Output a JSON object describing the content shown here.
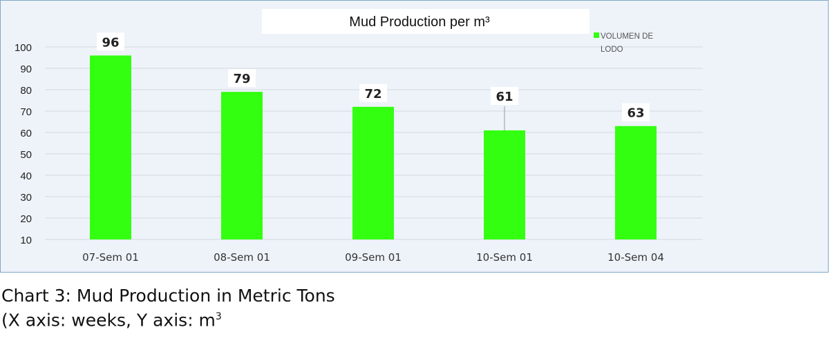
{
  "chart_data": {
    "type": "bar",
    "title": "Mud Production per m³",
    "categories": [
      "07-Sem 01",
      "08-Sem 01",
      "09-Sem 01",
      "10-Sem 01",
      "10-Sem 04"
    ],
    "series": [
      {
        "name": "VOLUMEN DE LODO",
        "values": [
          96,
          79,
          72,
          61,
          63
        ]
      }
    ],
    "data_labels": [
      "96",
      "79",
      "72",
      "61",
      "63"
    ],
    "y_ticks": [
      10,
      20,
      30,
      40,
      50,
      60,
      70,
      80,
      90,
      100
    ],
    "ylim": [
      10,
      100
    ],
    "grid": true,
    "legend_position": "top-right",
    "bar_color": "#33ff11"
  },
  "caption": {
    "line1": "Chart 3: Mud Production in Metric Tons",
    "line2_text": "(X axis: weeks, Y axis: m",
    "line2_sup": "3"
  }
}
